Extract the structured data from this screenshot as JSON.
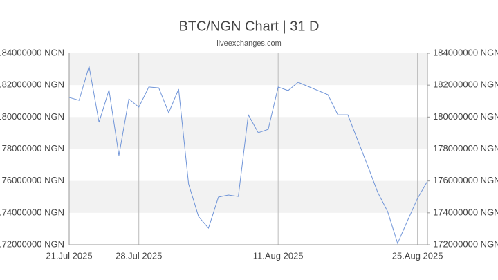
{
  "chart_data": {
    "type": "line",
    "title": "BTC/NGN Chart | 31 D",
    "subtitle": "liveexchanges.com",
    "x": [
      "2025-07-21",
      "2025-07-22",
      "2025-07-23",
      "2025-07-24",
      "2025-07-25",
      "2025-07-26",
      "2025-07-27",
      "2025-07-28",
      "2025-07-29",
      "2025-07-30",
      "2025-07-31",
      "2025-08-01",
      "2025-08-02",
      "2025-08-03",
      "2025-08-04",
      "2025-08-05",
      "2025-08-06",
      "2025-08-07",
      "2025-08-08",
      "2025-08-09",
      "2025-08-10",
      "2025-08-11",
      "2025-08-12",
      "2025-08-13",
      "2025-08-14",
      "2025-08-15",
      "2025-08-16",
      "2025-08-17",
      "2025-08-18",
      "2025-08-19",
      "2025-08-20",
      "2025-08-21",
      "2025-08-22",
      "2025-08-23",
      "2025-08-24",
      "2025-08-25",
      "2025-08-26"
    ],
    "series": [
      {
        "name": "BTC/NGN",
        "color": "#6f94d8",
        "values": [
          181230000,
          181050000,
          183180000,
          179670000,
          181700000,
          177590000,
          181140000,
          180620000,
          181880000,
          181830000,
          180270000,
          181750000,
          175810000,
          173770000,
          173040000,
          174990000,
          175120000,
          175030000,
          180140000,
          179020000,
          179230000,
          181880000,
          181660000,
          182180000,
          181920000,
          181660000,
          181400000,
          180140000,
          180140000,
          178540000,
          176940000,
          175290000,
          174080000,
          172090000,
          173510000,
          174900000,
          175980000
        ]
      }
    ],
    "xlim": [
      "2025-07-21",
      "2025-08-26"
    ],
    "xticks": [
      {
        "value": "2025-07-21",
        "label": "21.Jul 2025"
      },
      {
        "value": "2025-07-28",
        "label": "28.Jul 2025"
      },
      {
        "value": "2025-08-11",
        "label": "11.Aug 2025"
      },
      {
        "value": "2025-08-25",
        "label": "25.Aug 2025"
      }
    ],
    "ylim": [
      172000000,
      184000000
    ],
    "yticks": [
      {
        "value": 172000000,
        "label": "172000000 NGN"
      },
      {
        "value": 174000000,
        "label": "174000000 NGN"
      },
      {
        "value": 176000000,
        "label": "176000000 NGN"
      },
      {
        "value": 178000000,
        "label": "178000000 NGN"
      },
      {
        "value": 180000000,
        "label": "180000000 NGN"
      },
      {
        "value": 182000000,
        "label": "182000000 NGN"
      },
      {
        "value": 184000000,
        "label": "184000000 NGN"
      }
    ],
    "grid": true
  }
}
